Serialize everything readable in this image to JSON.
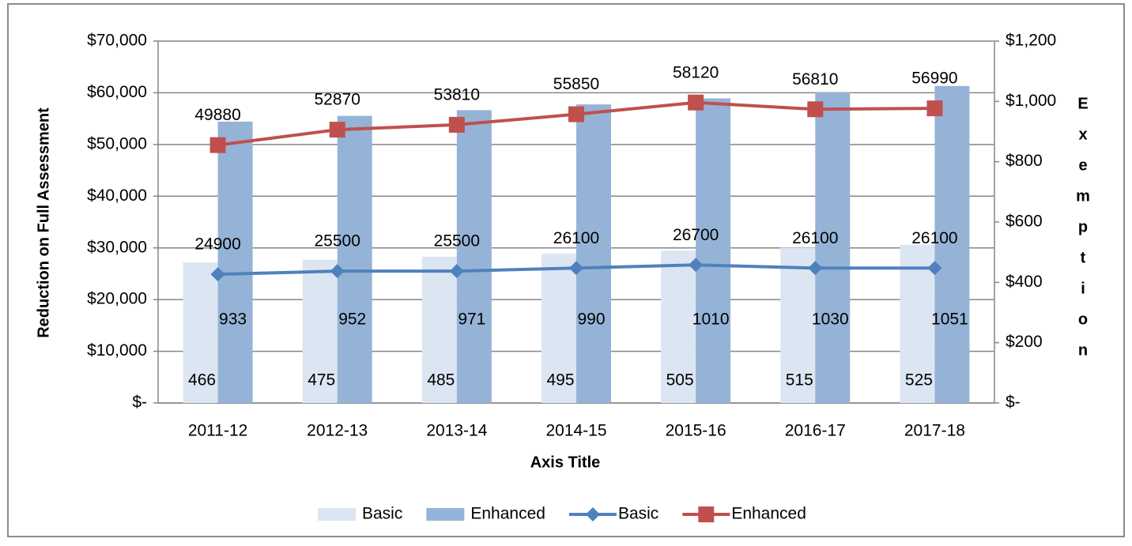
{
  "chart_data": {
    "type": "bar",
    "y_label": "Reduction  on Full Assessment",
    "y2_label": "Exemption",
    "x_label": "Axis Title",
    "categories": [
      "2011-12",
      "2012-13",
      "2013-14",
      "2014-15",
      "2015-16",
      "2016-17",
      "2017-18"
    ],
    "series": [
      {
        "name": "Basic",
        "type": "bar",
        "axis": "y2",
        "color": "#dce6f2",
        "values": [
          466,
          475,
          485,
          495,
          505,
          515,
          525
        ]
      },
      {
        "name": "Enhanced",
        "type": "bar",
        "axis": "y2",
        "color": "#95b3d7",
        "values": [
          933,
          952,
          971,
          990,
          1010,
          1030,
          1051
        ]
      },
      {
        "name": "Basic",
        "type": "line",
        "marker": "diamond",
        "color": "#4f81bd",
        "values": [
          24900,
          25500,
          25500,
          26100,
          26700,
          26100,
          26100
        ]
      },
      {
        "name": "Enhanced",
        "type": "line",
        "marker": "square",
        "color": "#c0504d",
        "values": [
          49880,
          52870,
          53810,
          55850,
          58120,
          56810,
          56990
        ]
      }
    ],
    "ylim": [
      0,
      70000
    ],
    "yticks": [
      {
        "value": 0,
        "label": "$-"
      },
      {
        "value": 10000,
        "label": "$10,000"
      },
      {
        "value": 20000,
        "label": "$20,000"
      },
      {
        "value": 30000,
        "label": "$30,000"
      },
      {
        "value": 40000,
        "label": "$40,000"
      },
      {
        "value": 50000,
        "label": "$50,000"
      },
      {
        "value": 60000,
        "label": "$60,000"
      },
      {
        "value": 70000,
        "label": "$70,000"
      }
    ],
    "y2lim": [
      0,
      1200
    ],
    "y2ticks": [
      {
        "value": 0,
        "label": "$-"
      },
      {
        "value": 200,
        "label": "$200"
      },
      {
        "value": 400,
        "label": "$400"
      },
      {
        "value": 600,
        "label": "$600"
      },
      {
        "value": 800,
        "label": "$800"
      },
      {
        "value": 1000,
        "label": "$1,000"
      },
      {
        "value": 1200,
        "label": "$1,200"
      }
    ],
    "grid": true,
    "legend": "bottom"
  }
}
